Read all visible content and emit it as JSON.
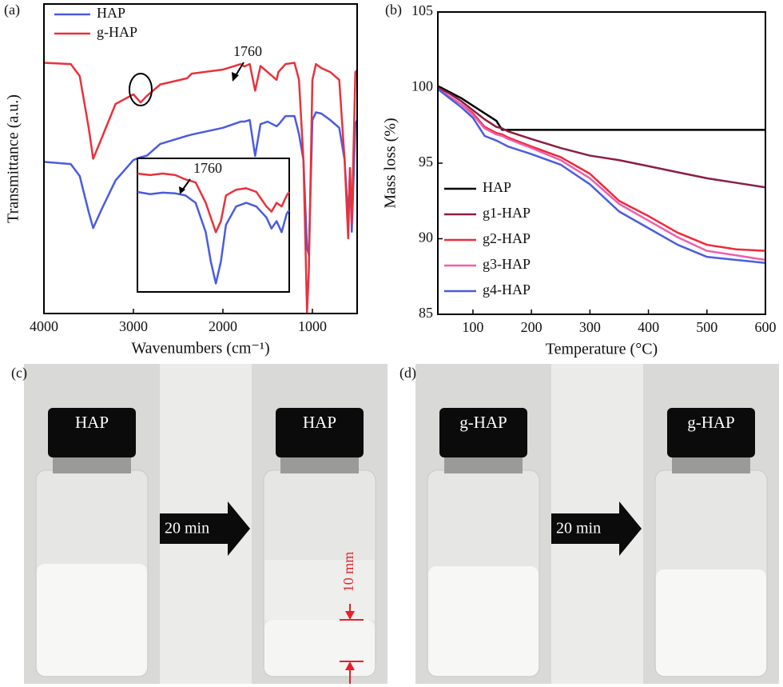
{
  "chart_data": [
    {
      "type": "line",
      "panel_label": "(a)",
      "x_label": "Wavenumbers (cm⁻¹)",
      "y_label": "Transmittance (a.u.)",
      "xlim": [
        4000,
        500
      ],
      "xticks": [
        4000,
        3000,
        2000,
        1000
      ],
      "ylim": [
        0,
        100
      ],
      "legend": "upper left",
      "annotation": "1760",
      "x": [
        4000,
        3700,
        3600,
        3500,
        3450,
        3350,
        3200,
        3000,
        2920,
        2850,
        2700,
        2400,
        2350,
        2000,
        1800,
        1760,
        1700,
        1640,
        1580,
        1500,
        1400,
        1380,
        1300,
        1200,
        1150,
        1100,
        1060,
        1040,
        1000,
        960,
        900,
        800,
        700,
        640,
        600,
        580,
        560,
        520,
        500
      ],
      "series": [
        {
          "name": "HAP",
          "color": "#4a5be0",
          "values": [
            49,
            48.3,
            44.4,
            32.8,
            27.6,
            34,
            43,
            49.6,
            50.5,
            51,
            54.8,
            57.4,
            57.8,
            60,
            62,
            62,
            62.5,
            50.9,
            61.2,
            62,
            60.5,
            61,
            63.8,
            63.8,
            58,
            49.6,
            21.2,
            19,
            62.5,
            65,
            64.6,
            62.5,
            60,
            49.6,
            30.2,
            47,
            26.4,
            61.2,
            62.5
          ]
        },
        {
          "name": "g-HAP",
          "color": "#e8323c",
          "values": [
            81,
            80.6,
            76.7,
            60,
            50,
            57,
            67.7,
            70.8,
            68.2,
            70.3,
            74,
            76,
            77.5,
            78.8,
            80.6,
            79.8,
            80.6,
            72,
            80,
            78,
            75.5,
            78,
            80.6,
            81,
            75.5,
            49.6,
            0.5,
            13.4,
            75.5,
            80.6,
            79.3,
            78,
            75.5,
            49.6,
            24.3,
            47,
            29,
            78,
            78.6
          ]
        }
      ],
      "inset": {
        "annotation": "1760",
        "xlim": [
          1950,
          1350
        ],
        "ylim": [
          0,
          100
        ],
        "x": [
          1950,
          1900,
          1850,
          1800,
          1760,
          1720,
          1680,
          1660,
          1640,
          1620,
          1600,
          1560,
          1520,
          1480,
          1440,
          1420,
          1400,
          1380,
          1360,
          1350
        ],
        "series": [
          {
            "color": "#4a5be0",
            "values": [
              77.8,
              76,
              77.2,
              76.6,
              74.9,
              68.9,
              44.9,
              21,
              3,
              21,
              50.9,
              65.9,
              68.9,
              65.9,
              56.9,
              47.9,
              53.9,
              44.9,
              59.9,
              62.9
            ]
          },
          {
            "color": "#e8323c",
            "values": [
              92.8,
              91.6,
              92.8,
              91.6,
              88,
              85.6,
              68.9,
              56.9,
              44.9,
              53.9,
              74.9,
              79.6,
              80.8,
              77.8,
              65.9,
              61.7,
              68.9,
              65.9,
              74.9,
              77.8
            ]
          }
        ]
      }
    },
    {
      "type": "line",
      "panel_label": "(b)",
      "x_label": "Temperature (°C)",
      "y_label": "Mass loss (%)",
      "xlim": [
        40,
        600
      ],
      "xticks": [
        100,
        200,
        300,
        400,
        500,
        600
      ],
      "ylim": [
        85,
        105
      ],
      "yticks": [
        85,
        90,
        95,
        100,
        105
      ],
      "legend": "lower left",
      "x": [
        40,
        60,
        80,
        100,
        120,
        140,
        150,
        160,
        200,
        250,
        300,
        350,
        400,
        450,
        500,
        550,
        600
      ],
      "series": [
        {
          "name": "HAP",
          "color": "#000000",
          "values": [
            100.1,
            99.7,
            99.3,
            98.8,
            98.3,
            97.8,
            97.2,
            97.2,
            97.2,
            97.2,
            97.2,
            97.2,
            97.2,
            97.2,
            97.2,
            97.2,
            97.2
          ]
        },
        {
          "name": "g1-HAP",
          "color": "#8b1f3f",
          "values": [
            100,
            99.6,
            99.1,
            98.5,
            97.9,
            97.4,
            97.3,
            97.1,
            96.6,
            96,
            95.5,
            95.2,
            94.8,
            94.4,
            94,
            93.7,
            93.4
          ]
        },
        {
          "name": "g2-HAP",
          "color": "#ee2a3a",
          "values": [
            99.9,
            99.4,
            98.9,
            98.3,
            97.4,
            97,
            96.9,
            96.7,
            96.1,
            95.4,
            94.3,
            92.5,
            91.5,
            90.4,
            89.6,
            89.3,
            89.2
          ]
        },
        {
          "name": "g3-HAP",
          "color": "#ee5fae",
          "values": [
            99.9,
            99.4,
            98.9,
            98.2,
            97.3,
            96.9,
            96.8,
            96.6,
            96,
            95.2,
            94,
            92.3,
            91.2,
            90.1,
            89.2,
            88.9,
            88.6
          ]
        },
        {
          "name": "g4-HAP",
          "color": "#4c5ce0",
          "values": [
            99.9,
            99.3,
            98.7,
            98,
            96.8,
            96.5,
            96.3,
            96.1,
            95.6,
            94.9,
            93.6,
            91.8,
            90.7,
            89.6,
            88.8,
            88.6,
            88.4
          ]
        }
      ]
    }
  ],
  "photo_panels": [
    {
      "panel_label": "(c)",
      "vial_labels": [
        "HAP",
        "HAP"
      ],
      "arrow_label": "20 min",
      "annotation": "10 mm"
    },
    {
      "panel_label": "(d)",
      "vial_labels": [
        "g-HAP",
        "g-HAP"
      ],
      "arrow_label": "20 min"
    }
  ]
}
